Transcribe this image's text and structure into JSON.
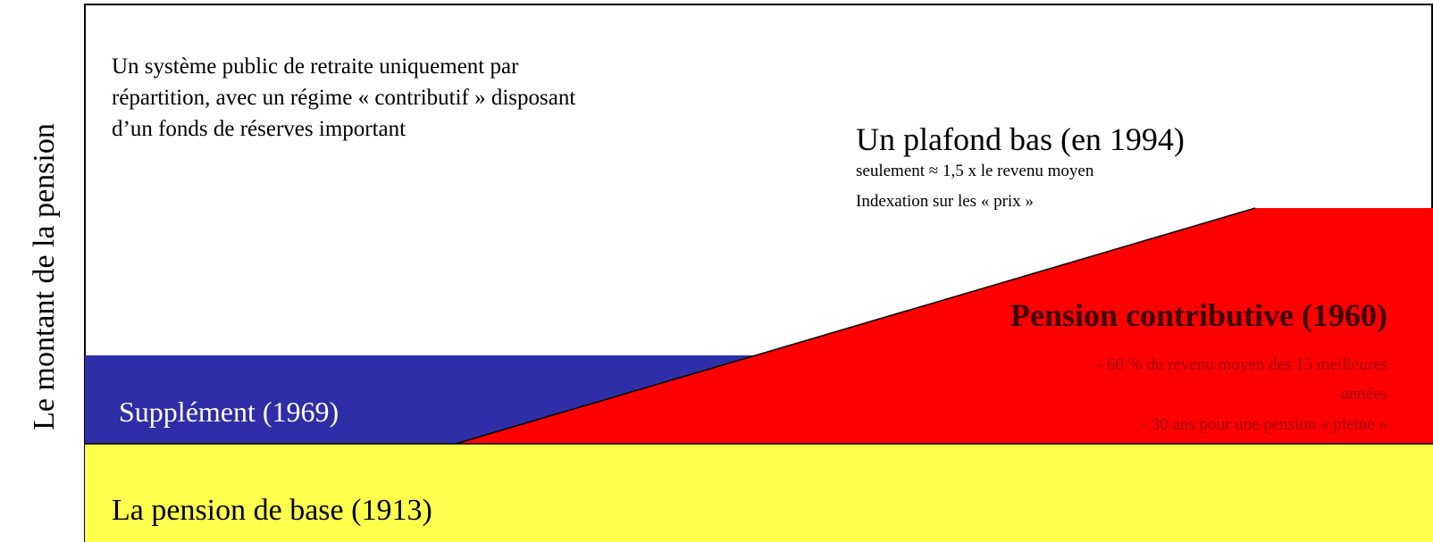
{
  "axis_label": "Le montant de la pension",
  "intro": [
    "Un système public de retraite uniquement par",
    "répartition, avec un régime « contributif » disposant",
    "d’un fonds de réserves important"
  ],
  "ceiling": {
    "title": "Un plafond bas (en 1994)",
    "lines": [
      "seulement ≈ 1,5 x le revenu moyen",
      "Indexation sur les « prix »"
    ]
  },
  "contributive": {
    "title": "Pension contributive (1960)",
    "lines": [
      "- 60 % du revenu moyen des 15 meilleures",
      "années",
      "- 30 ans pour une pension « pleine »"
    ]
  },
  "supplement": "Supplément (1969)",
  "base": "La pension de base (1913)"
}
